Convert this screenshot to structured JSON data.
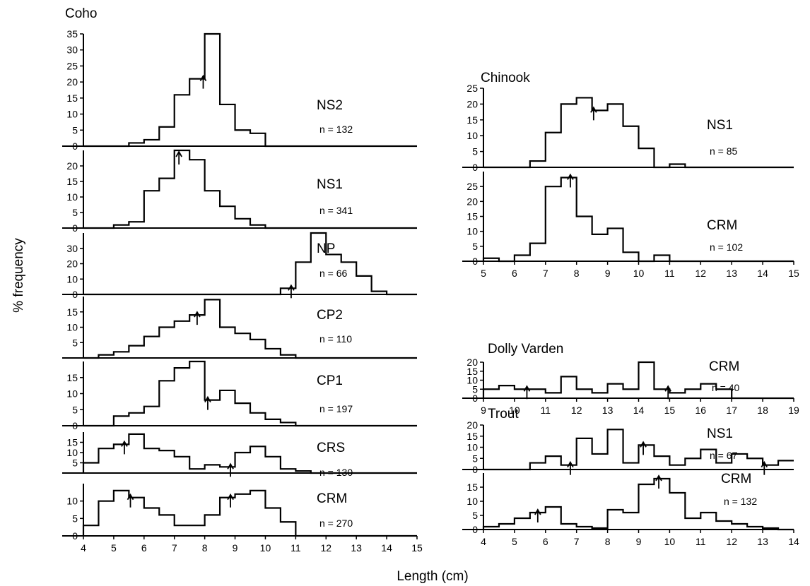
{
  "figure": {
    "ylabel": "% frequency",
    "xlabel": "Length (cm)"
  },
  "chart_data": [
    {
      "type": "histogram",
      "group": "Coho",
      "panel": "NS2",
      "sample": "n = 132",
      "ylim": [
        0,
        35
      ],
      "yticks": [
        0,
        5,
        10,
        15,
        20,
        25,
        30,
        35
      ],
      "xlim": [
        4,
        15
      ],
      "bin_start": 4,
      "bin_width": 0.5,
      "values": [
        0,
        0,
        0,
        1,
        2,
        6,
        16,
        21,
        35,
        13,
        5,
        4,
        0,
        0,
        0,
        0,
        0,
        0,
        0,
        0,
        0,
        0
      ],
      "arrows": [
        7.95
      ]
    },
    {
      "type": "histogram",
      "group": "Coho",
      "panel": "NS1",
      "sample": "n = 341",
      "ylim": [
        0,
        25
      ],
      "yticks": [
        0,
        5,
        10,
        15,
        20
      ],
      "xlim": [
        4,
        15
      ],
      "bin_start": 4,
      "bin_width": 0.5,
      "values": [
        0,
        0,
        1,
        2,
        12,
        16,
        25,
        22,
        12,
        7,
        3,
        1,
        0,
        0,
        0,
        0,
        0,
        0,
        0,
        0,
        0,
        0
      ],
      "arrows": [
        7.15
      ]
    },
    {
      "type": "histogram",
      "group": "Coho",
      "panel": "NP",
      "sample": "n = 66",
      "ylim": [
        0,
        40
      ],
      "yticks": [
        0,
        10,
        20,
        30
      ],
      "xlim": [
        4,
        15
      ],
      "bin_start": 4,
      "bin_width": 0.5,
      "values": [
        0,
        0,
        0,
        0,
        0,
        0,
        0,
        0,
        0,
        0,
        0,
        0,
        0,
        4,
        21,
        40,
        26,
        21,
        12,
        2,
        0,
        0,
        2,
        0,
        2,
        0
      ],
      "arrows": [
        10.85
      ]
    },
    {
      "type": "histogram",
      "group": "Coho",
      "panel": "CP2",
      "sample": "n = 110",
      "ylim": [
        0,
        20
      ],
      "yticks": [
        5,
        10,
        15
      ],
      "xlim": [
        4,
        15
      ],
      "bin_start": 4,
      "bin_width": 0.5,
      "values": [
        0,
        1,
        2,
        4,
        7,
        10,
        12,
        14,
        19,
        10,
        8,
        6,
        3,
        1,
        0,
        0,
        0,
        0,
        0,
        0,
        0,
        0
      ],
      "arrows": [
        7.75
      ]
    },
    {
      "type": "histogram",
      "group": "Coho",
      "panel": "CP1",
      "sample": "n = 197",
      "ylim": [
        0,
        20
      ],
      "yticks": [
        0,
        5,
        10,
        15
      ],
      "xlim": [
        4,
        15
      ],
      "bin_start": 4,
      "bin_width": 0.5,
      "values": [
        0,
        0,
        3,
        4,
        6,
        14,
        18,
        20,
        8,
        11,
        7,
        4,
        2,
        1,
        0,
        0,
        0,
        0,
        0,
        0,
        0,
        0
      ],
      "arrows": [
        8.1
      ]
    },
    {
      "type": "histogram",
      "group": "Coho",
      "panel": "CRS",
      "sample": "n = 130",
      "ylim": [
        0,
        20
      ],
      "yticks": [
        5,
        10,
        15
      ],
      "xlim": [
        4,
        15
      ],
      "bin_start": 4,
      "bin_width": 0.5,
      "values": [
        5,
        12,
        14,
        19,
        12,
        11,
        8,
        2,
        4,
        3,
        10,
        13,
        8,
        2,
        1,
        0,
        0,
        0,
        0,
        0,
        0,
        0
      ],
      "arrows": [
        5.35,
        8.85
      ]
    },
    {
      "type": "histogram",
      "group": "Coho",
      "panel": "CRM",
      "sample": "n = 270",
      "ylim": [
        0,
        15
      ],
      "yticks": [
        0,
        5,
        10
      ],
      "xlim": [
        4,
        15
      ],
      "bin_start": 4,
      "bin_width": 0.5,
      "values": [
        3,
        10,
        13,
        11,
        8,
        6,
        3,
        3,
        6,
        11,
        12,
        13,
        8,
        4,
        0,
        0,
        0,
        0,
        0,
        0,
        0,
        0
      ],
      "arrows": [
        5.55,
        8.85
      ],
      "xticks": [
        4,
        5,
        6,
        7,
        8,
        9,
        10,
        11,
        12,
        13,
        14,
        15
      ]
    },
    {
      "type": "histogram",
      "group": "Chinook",
      "panel": "NS1",
      "sample": "n = 85",
      "ylim": [
        0,
        25
      ],
      "yticks": [
        0,
        5,
        10,
        15,
        20,
        25
      ],
      "xlim": [
        5,
        15
      ],
      "bin_start": 5,
      "bin_width": 0.5,
      "values": [
        0,
        0,
        0,
        2,
        11,
        20,
        22,
        18,
        20,
        13,
        6,
        0,
        1,
        0,
        0,
        0,
        0,
        0,
        0,
        0
      ],
      "arrows": [
        8.55
      ]
    },
    {
      "type": "histogram",
      "group": "Chinook",
      "panel": "CRM",
      "sample": "n = 102",
      "ylim": [
        0,
        30
      ],
      "yticks": [
        0,
        5,
        10,
        15,
        20,
        25
      ],
      "xlim": [
        5,
        15
      ],
      "bin_start": 5,
      "bin_width": 0.5,
      "values": [
        1,
        0,
        2,
        6,
        25,
        28,
        15,
        9,
        11,
        3,
        0,
        2,
        0,
        0,
        0,
        0,
        0,
        0,
        0,
        0
      ],
      "arrows": [
        7.8
      ],
      "xticks": [
        5,
        6,
        7,
        8,
        9,
        10,
        11,
        12,
        13,
        14,
        15
      ]
    },
    {
      "type": "histogram",
      "group": "Dolly Varden",
      "panel": "CRM",
      "sample": "n = 40",
      "ylim": [
        0,
        20
      ],
      "yticks": [
        0,
        5,
        10,
        15,
        20
      ],
      "xlim": [
        9,
        19
      ],
      "bin_start": 9,
      "bin_width": 0.5,
      "values": [
        5,
        7,
        5,
        5,
        3,
        12,
        5,
        3,
        8,
        5,
        20,
        5,
        3,
        5,
        8,
        5,
        0,
        0,
        0,
        0
      ],
      "arrows": [
        10.4,
        14.95
      ],
      "xticks": [
        9,
        10,
        11,
        12,
        13,
        14,
        15,
        16,
        17,
        18,
        19
      ]
    },
    {
      "type": "histogram",
      "group": "Trout",
      "panel": "NS1",
      "sample": "n = 67",
      "ylim": [
        0,
        20
      ],
      "yticks": [
        0,
        5,
        10,
        15,
        20
      ],
      "xlim": [
        4,
        14
      ],
      "bin_start": 4,
      "bin_width": 0.5,
      "values": [
        0,
        0,
        0,
        3,
        6,
        2,
        14,
        7,
        18,
        3,
        11,
        6,
        2,
        5,
        9,
        3,
        7,
        5,
        2,
        4
      ],
      "arrows": [
        6.8,
        9.15,
        13.05
      ]
    },
    {
      "type": "histogram",
      "group": "Trout",
      "panel": "CRM",
      "sample": "n = 132",
      "ylim": [
        0,
        20
      ],
      "yticks": [
        0,
        5,
        10,
        15
      ],
      "xlim": [
        4,
        14
      ],
      "bin_start": 4,
      "bin_width": 0.5,
      "values": [
        1,
        2,
        4,
        6,
        8,
        2,
        1,
        0.5,
        7,
        6,
        16,
        18,
        13,
        4,
        6,
        3,
        2,
        1,
        0.5,
        0
      ],
      "arrows": [
        5.75,
        9.65
      ],
      "xticks": [
        4,
        5,
        6,
        7,
        8,
        9,
        10,
        11,
        12,
        13,
        14
      ]
    }
  ]
}
